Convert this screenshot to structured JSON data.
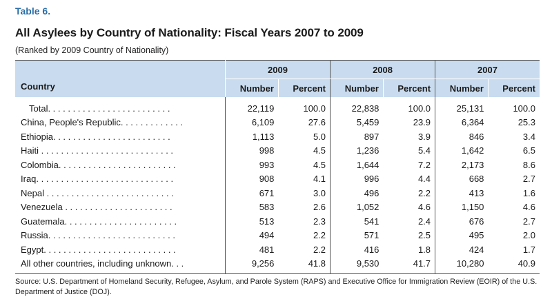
{
  "table_label": "Table 6.",
  "title": "All Asylees by Country of Nationality: Fiscal Years 2007 to 2009",
  "subtitle": "(Ranked by 2009 Country of Nationality)",
  "header": {
    "country": "Country",
    "years": [
      "2009",
      "2008",
      "2007"
    ],
    "number": "Number",
    "percent": "Percent"
  },
  "rows": [
    {
      "country": "Total. . . . . . . . . . . . . . . . . . . . . . . . .",
      "n2009": "22,119",
      "p2009": "100.0",
      "n2008": "22,838",
      "p2008": "100.0",
      "n2007": "25,131",
      "p2007": "100.0"
    },
    {
      "country": "China, People's Republic. . . . . . . . . . . . .",
      "n2009": "6,109",
      "p2009": "27.6",
      "n2008": "5,459",
      "p2008": "23.9",
      "n2007": "6,364",
      "p2007": "25.3"
    },
    {
      "country": "Ethiopia. . . . . . . . . . . . . . . . . . . . . . . .",
      "n2009": "1,113",
      "p2009": "5.0",
      "n2008": "897",
      "p2008": "3.9",
      "n2007": "846",
      "p2007": "3.4"
    },
    {
      "country": "Haiti . . . . . . . . . . . . . . . . . . . . . . . . . . .",
      "n2009": "998",
      "p2009": "4.5",
      "n2008": "1,236",
      "p2008": "5.4",
      "n2007": "1,642",
      "p2007": "6.5"
    },
    {
      "country": "Colombia. . . . . . . . . . . . . . . . . . . . . . . .",
      "n2009": "993",
      "p2009": "4.5",
      "n2008": "1,644",
      "p2008": "7.2",
      "n2007": "2,173",
      "p2007": "8.6"
    },
    {
      "country": "Iraq. . . . . . . . . . . . . . . . . . . . . . . . . . . .",
      "n2009": "908",
      "p2009": "4.1",
      "n2008": "996",
      "p2008": "4.4",
      "n2007": "668",
      "p2007": "2.7"
    },
    {
      "country": "Nepal . . . . . . . . . . . . . . . . . . . . . . . . . .",
      "n2009": "671",
      "p2009": "3.0",
      "n2008": "496",
      "p2008": "2.2",
      "n2007": "413",
      "p2007": "1.6"
    },
    {
      "country": "Venezuela . . . . . . . . . . . . . . . . . . . . . .",
      "n2009": "583",
      "p2009": "2.6",
      "n2008": "1,052",
      "p2008": "4.6",
      "n2007": "1,150",
      "p2007": "4.6"
    },
    {
      "country": "Guatemala. . . . . . . . . . . . . . . . . . . . . . .",
      "n2009": "513",
      "p2009": "2.3",
      "n2008": "541",
      "p2008": "2.4",
      "n2007": "676",
      "p2007": "2.7"
    },
    {
      "country": "Russia. . . . . . . . . . . . . . . . . . . . . . . . . .",
      "n2009": "494",
      "p2009": "2.2",
      "n2008": "571",
      "p2008": "2.5",
      "n2007": "495",
      "p2007": "2.0"
    },
    {
      "country": "Egypt. . . . . . . . . . . . . . . . . . . . . . . . . . .",
      "n2009": "481",
      "p2009": "2.2",
      "n2008": "416",
      "p2008": "1.8",
      "n2007": "424",
      "p2007": "1.7"
    },
    {
      "country": "All other countries, including unknown. . .",
      "n2009": "9,256",
      "p2009": "41.8",
      "n2008": "9,530",
      "p2008": "41.7",
      "n2007": "10,280",
      "p2007": "40.9"
    }
  ],
  "source": "Source: U.S. Department of Homeland Security, Refugee, Asylum, and Parole System (RAPS) and Executive Office for Immigration Review (EOIR) of the U.S. Department of Justice (DOJ).",
  "colors": {
    "header_bg": "#c9dcef",
    "label_blue": "#2a6ea8"
  }
}
